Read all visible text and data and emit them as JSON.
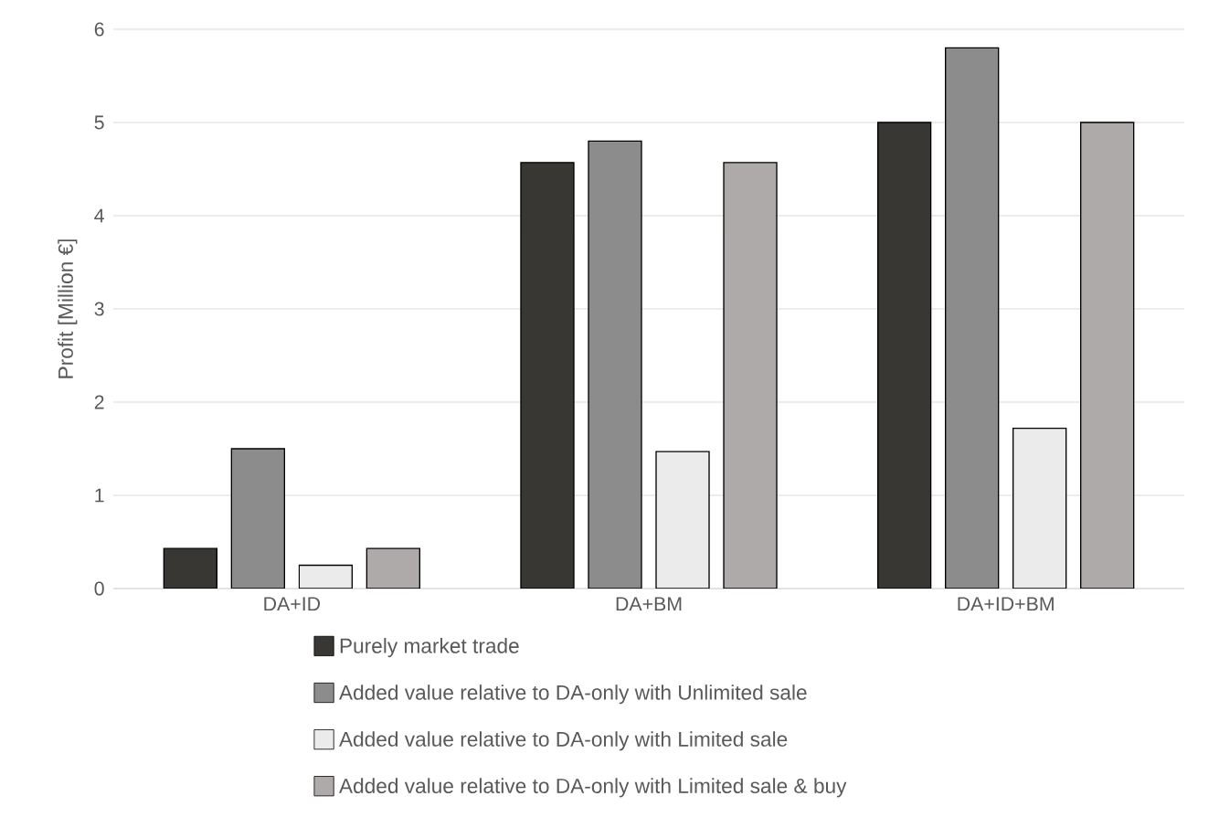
{
  "chart_data": {
    "type": "bar",
    "ylabel": "Profit [Million €]",
    "categories": [
      "DA+ID",
      "DA+BM",
      "DA+ID+BM"
    ],
    "series": [
      {
        "name": "Purely market trade",
        "color": "#383734",
        "values": [
          0.43,
          4.57,
          5.0
        ]
      },
      {
        "name": "Added value relative to DA-only with Unlimited sale",
        "color": "#8c8c8c",
        "values": [
          1.5,
          4.8,
          5.8
        ]
      },
      {
        "name": "Added value relative to DA-only with Limited sale",
        "color": "#ebebeb",
        "values": [
          0.25,
          1.47,
          1.72
        ]
      },
      {
        "name": "Added value relative to DA-only with Limited sale & buy",
        "color": "#aeaaa9",
        "values": [
          0.43,
          4.57,
          5.0
        ]
      }
    ],
    "ylim": [
      0,
      6
    ],
    "yticks": [
      0,
      1,
      2,
      3,
      4,
      5,
      6
    ],
    "grid": "y",
    "legend": "bottom"
  }
}
